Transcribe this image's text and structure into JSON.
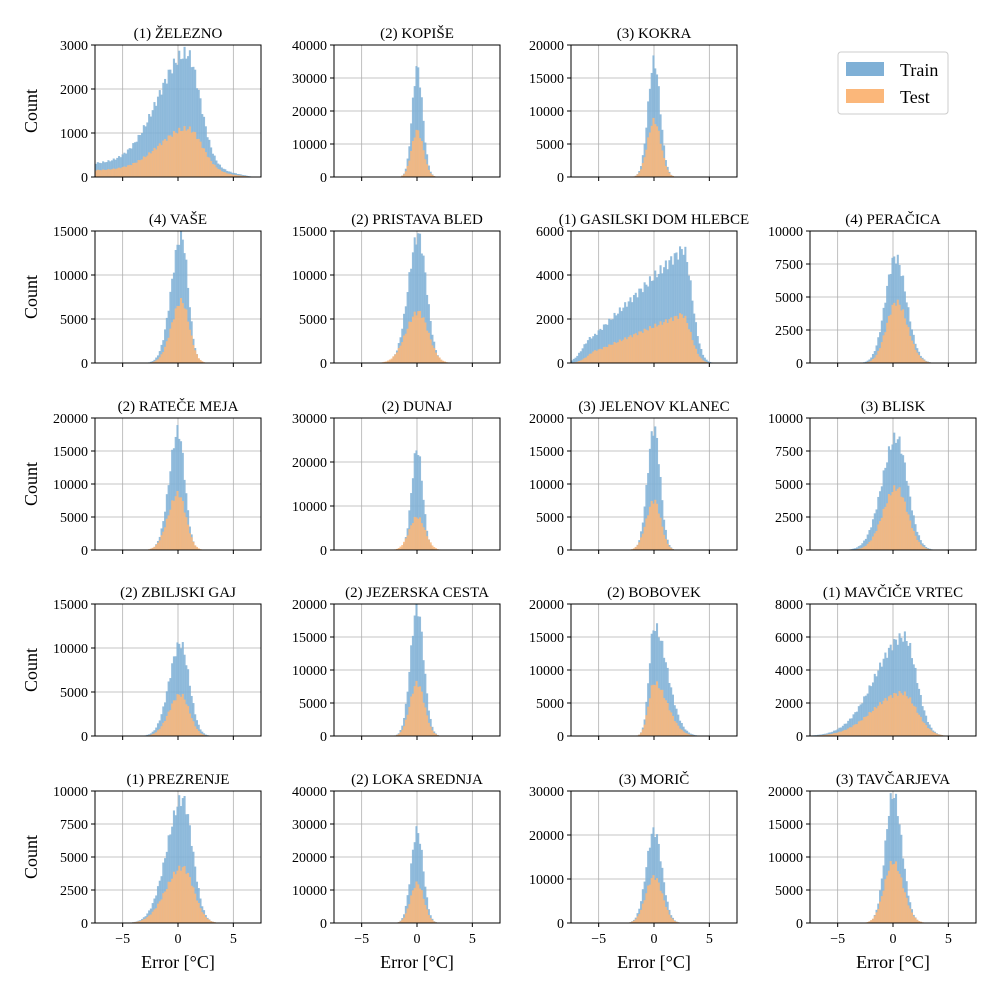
{
  "figure": {
    "ylabel": "Count",
    "xlabel": "Error [°C]",
    "legend": {
      "placement": "top-right",
      "items": [
        {
          "name": "Train",
          "color": "#7fb0d6"
        },
        {
          "name": "Test",
          "color": "#fbb77a"
        }
      ]
    }
  },
  "chart_data": [
    {
      "type": "bar",
      "title": "(1) ŽELEZNO",
      "ylim": [
        0,
        3000
      ],
      "yticks": [
        "0",
        "1000",
        "2000",
        "3000"
      ],
      "xlim": [
        -7.5,
        7.5
      ],
      "xticks": [
        "-5",
        "0",
        "5"
      ],
      "show_xticklabels": false,
      "show_ylabel": true,
      "show_xlabel": false,
      "series": [
        {
          "name": "Train",
          "shape": "skew_left",
          "mu": 0.8,
          "sl": 2.6,
          "sr": 1.2,
          "peak": 2500,
          "floor": 300
        },
        {
          "name": "Test",
          "shape": "skew_left",
          "mu": 0.9,
          "sl": 2.6,
          "sr": 1.3,
          "peak": 950,
          "floor": 150
        }
      ]
    },
    {
      "type": "bar",
      "title": "(2) KOPIŠE",
      "ylim": [
        0,
        40000
      ],
      "yticks": [
        "0",
        "10000",
        "20000",
        "30000",
        "40000"
      ],
      "xlim": [
        -7.5,
        7.5
      ],
      "xticks": [
        "-5",
        "0",
        "5"
      ],
      "show_xticklabels": false,
      "show_ylabel": false,
      "show_xlabel": false,
      "series": [
        {
          "name": "Train",
          "mu": 0.0,
          "sl": 0.45,
          "sr": 0.5,
          "peak": 33000
        },
        {
          "name": "Test",
          "mu": 0.0,
          "sl": 0.5,
          "sr": 0.55,
          "peak": 14000
        }
      ]
    },
    {
      "type": "bar",
      "title": "(3) KOKRA",
      "ylim": [
        0,
        20000
      ],
      "yticks": [
        "0",
        "5000",
        "10000",
        "15000",
        "20000"
      ],
      "xlim": [
        -7.5,
        7.5
      ],
      "xticks": [
        "-5",
        "0",
        "5"
      ],
      "show_xticklabels": false,
      "show_ylabel": false,
      "show_xlabel": false,
      "series": [
        {
          "name": "Train",
          "mu": 0.0,
          "sl": 0.55,
          "sr": 0.55,
          "peak": 17500
        },
        {
          "name": "Test",
          "mu": 0.0,
          "sl": 0.6,
          "sr": 0.6,
          "peak": 8500
        }
      ]
    },
    {
      "type": "bar",
      "title": "(4) VAŠE",
      "ylim": [
        0,
        15000
      ],
      "yticks": [
        "0",
        "5000",
        "10000",
        "15000"
      ],
      "xlim": [
        -7.5,
        7.5
      ],
      "xticks": [
        "-5",
        "0",
        "5"
      ],
      "show_xticklabels": false,
      "show_ylabel": true,
      "show_xlabel": false,
      "series": [
        {
          "name": "Train",
          "mu": 0.3,
          "sl": 0.9,
          "sr": 0.6,
          "peak": 14500
        },
        {
          "name": "Test",
          "mu": 0.3,
          "sl": 0.9,
          "sr": 0.7,
          "peak": 7000
        }
      ]
    },
    {
      "type": "bar",
      "title": "(2) PRISTAVA BLED",
      "ylim": [
        0,
        15000
      ],
      "yticks": [
        "0",
        "5000",
        "10000",
        "15000"
      ],
      "xlim": [
        -7.5,
        7.5
      ],
      "xticks": [
        "-5",
        "0",
        "5"
      ],
      "show_xticklabels": false,
      "show_ylabel": false,
      "show_xlabel": false,
      "series": [
        {
          "name": "Train",
          "mu": 0.1,
          "sl": 0.9,
          "sr": 0.75,
          "peak": 14500
        },
        {
          "name": "Test",
          "mu": 0.1,
          "sl": 1.1,
          "sr": 0.9,
          "peak": 5800
        }
      ]
    },
    {
      "type": "bar",
      "title": "(1) GASILSKI DOM HLEBCE",
      "ylim": [
        0,
        6000
      ],
      "yticks": [
        "0",
        "2000",
        "4000",
        "6000"
      ],
      "xlim": [
        -7.5,
        7.5
      ],
      "xticks": [
        "-5",
        "0",
        "5"
      ],
      "show_xticklabels": false,
      "show_ylabel": false,
      "show_xlabel": false,
      "series": [
        {
          "name": "Train",
          "shape": "ramp",
          "a": -5.5,
          "b": 2.6,
          "h0": 1200,
          "h1": 5200,
          "decay": 0.8
        },
        {
          "name": "Test",
          "shape": "ramp",
          "a": -5.0,
          "b": 2.5,
          "h0": 600,
          "h1": 2200,
          "decay": 0.8
        }
      ]
    },
    {
      "type": "bar",
      "title": "(4) PERAČICA",
      "ylim": [
        0,
        10000
      ],
      "yticks": [
        "0",
        "2500",
        "5000",
        "7500",
        "10000"
      ],
      "xlim": [
        -7.5,
        7.5
      ],
      "xticks": [
        "-5",
        "0",
        "5"
      ],
      "show_xticklabels": false,
      "show_ylabel": false,
      "show_xlabel": false,
      "series": [
        {
          "name": "Train",
          "mu": 0.2,
          "sl": 0.9,
          "sr": 1.0,
          "peak": 8000
        },
        {
          "name": "Test",
          "mu": 0.3,
          "sl": 0.9,
          "sr": 1.0,
          "peak": 4600
        }
      ]
    },
    {
      "type": "bar",
      "title": "(2) RATEČE MEJA",
      "ylim": [
        0,
        20000
      ],
      "yticks": [
        "0",
        "5000",
        "10000",
        "15000",
        "20000"
      ],
      "xlim": [
        -7.5,
        7.5
      ],
      "xticks": [
        "-5",
        "0",
        "5"
      ],
      "show_xticklabels": false,
      "show_ylabel": true,
      "show_xlabel": false,
      "series": [
        {
          "name": "Train",
          "mu": 0.0,
          "sl": 0.8,
          "sr": 0.6,
          "peak": 18000
        },
        {
          "name": "Test",
          "mu": 0.0,
          "sl": 0.9,
          "sr": 0.7,
          "peak": 8500
        }
      ]
    },
    {
      "type": "bar",
      "title": "(2) DUNAJ",
      "ylim": [
        0,
        30000
      ],
      "yticks": [
        "0",
        "10000",
        "20000",
        "30000"
      ],
      "xlim": [
        -7.5,
        7.5
      ],
      "xticks": [
        "-5",
        "0",
        "5"
      ],
      "show_xticklabels": false,
      "show_ylabel": false,
      "show_xlabel": false,
      "series": [
        {
          "name": "Train",
          "mu": 0.0,
          "sl": 0.5,
          "sr": 0.5,
          "peak": 23000
        },
        {
          "name": "Test",
          "mu": 0.0,
          "sl": 0.7,
          "sr": 0.7,
          "peak": 7500
        }
      ]
    },
    {
      "type": "bar",
      "title": "(3) JELENOV KLANEC",
      "ylim": [
        0,
        20000
      ],
      "yticks": [
        "0",
        "5000",
        "10000",
        "15000",
        "20000"
      ],
      "xlim": [
        -7.5,
        7.5
      ],
      "xticks": [
        "-5",
        "0",
        "5"
      ],
      "show_xticklabels": false,
      "show_ylabel": false,
      "show_xlabel": false,
      "series": [
        {
          "name": "Train",
          "mu": 0.0,
          "sl": 0.6,
          "sr": 0.55,
          "peak": 18500
        },
        {
          "name": "Test",
          "mu": 0.0,
          "sl": 0.7,
          "sr": 0.6,
          "peak": 7500
        }
      ]
    },
    {
      "type": "bar",
      "title": "(3) BLISK",
      "ylim": [
        0,
        10000
      ],
      "yticks": [
        "0",
        "2500",
        "5000",
        "7500",
        "10000"
      ],
      "xlim": [
        -7.5,
        7.5
      ],
      "xticks": [
        "-5",
        "0",
        "5"
      ],
      "show_xticklabels": false,
      "show_ylabel": false,
      "show_xlabel": false,
      "series": [
        {
          "name": "Train",
          "mu": 0.3,
          "sl": 1.3,
          "sr": 1.0,
          "peak": 8500
        },
        {
          "name": "Test",
          "mu": 0.3,
          "sl": 1.2,
          "sr": 1.0,
          "peak": 4700
        }
      ]
    },
    {
      "type": "bar",
      "title": "(2) ZBILJSKI GAJ",
      "ylim": [
        0,
        15000
      ],
      "yticks": [
        "0",
        "5000",
        "10000",
        "15000"
      ],
      "xlim": [
        -7.5,
        7.5
      ],
      "xticks": [
        "-5",
        "0",
        "5"
      ],
      "show_xticklabels": false,
      "show_ylabel": true,
      "show_xlabel": false,
      "series": [
        {
          "name": "Train",
          "mu": 0.2,
          "sl": 1.0,
          "sr": 0.8,
          "peak": 10500
        },
        {
          "name": "Test",
          "mu": 0.2,
          "sl": 1.0,
          "sr": 0.8,
          "peak": 4700
        }
      ]
    },
    {
      "type": "bar",
      "title": "(2) JEZERSKA CESTA",
      "ylim": [
        0,
        20000
      ],
      "yticks": [
        "0",
        "5000",
        "10000",
        "15000",
        "20000"
      ],
      "xlim": [
        -7.5,
        7.5
      ],
      "xticks": [
        "-5",
        "0",
        "5"
      ],
      "show_xticklabels": false,
      "show_ylabel": false,
      "show_xlabel": false,
      "series": [
        {
          "name": "Train",
          "mu": 0.0,
          "sl": 0.6,
          "sr": 0.6,
          "peak": 19500
        },
        {
          "name": "Test",
          "mu": 0.0,
          "sl": 0.65,
          "sr": 0.65,
          "peak": 8000
        }
      ]
    },
    {
      "type": "bar",
      "title": "(2) BOBOVEK",
      "ylim": [
        0,
        20000
      ],
      "yticks": [
        "0",
        "5000",
        "10000",
        "15000",
        "20000"
      ],
      "xlim": [
        -7.5,
        7.5
      ],
      "xticks": [
        "-5",
        "0",
        "5"
      ],
      "show_xticklabels": false,
      "show_ylabel": false,
      "show_xlabel": false,
      "series": [
        {
          "name": "Train",
          "mu": 0.0,
          "sl": 0.45,
          "sr": 1.2,
          "peak": 16500
        },
        {
          "name": "Test",
          "mu": 0.0,
          "sl": 0.5,
          "sr": 1.2,
          "peak": 8000
        }
      ]
    },
    {
      "type": "bar",
      "title": "(1) MAVČIČE VRTEC",
      "ylim": [
        0,
        8000
      ],
      "yticks": [
        "0",
        "2000",
        "4000",
        "6000",
        "8000"
      ],
      "xlim": [
        -7.5,
        7.5
      ],
      "xticks": [
        "-5",
        "0",
        "5"
      ],
      "show_xticklabels": false,
      "show_ylabel": false,
      "show_xlabel": false,
      "series": [
        {
          "name": "Train",
          "mu": 1.0,
          "sl": 2.6,
          "sr": 1.1,
          "peak": 6000
        },
        {
          "name": "Test",
          "mu": 0.8,
          "sl": 2.6,
          "sr": 1.3,
          "peak": 2600
        }
      ]
    },
    {
      "type": "bar",
      "title": "(1) PREZRENJE",
      "ylim": [
        0,
        10000
      ],
      "yticks": [
        "0",
        "2500",
        "5000",
        "7500",
        "10000"
      ],
      "xlim": [
        -7.5,
        7.5
      ],
      "xticks": [
        "-5",
        "0",
        "5"
      ],
      "show_xticklabels": true,
      "show_ylabel": true,
      "show_xlabel": true,
      "series": [
        {
          "name": "Train",
          "mu": 0.4,
          "sl": 1.4,
          "sr": 0.9,
          "peak": 9400
        },
        {
          "name": "Test",
          "mu": 0.4,
          "sl": 1.5,
          "sr": 1.0,
          "peak": 4200
        }
      ]
    },
    {
      "type": "bar",
      "title": "(2) LOKA SREDNJA",
      "ylim": [
        0,
        40000
      ],
      "yticks": [
        "0",
        "10000",
        "20000",
        "30000",
        "40000"
      ],
      "xlim": [
        -7.5,
        7.5
      ],
      "xticks": [
        "-5",
        "0",
        "5"
      ],
      "show_xticklabels": true,
      "show_ylabel": false,
      "show_xlabel": true,
      "series": [
        {
          "name": "Train",
          "mu": 0.0,
          "sl": 0.55,
          "sr": 0.55,
          "peak": 28000
        },
        {
          "name": "Test",
          "mu": 0.0,
          "sl": 0.6,
          "sr": 0.6,
          "peak": 12000
        }
      ]
    },
    {
      "type": "bar",
      "title": "(3) MORIČ",
      "ylim": [
        0,
        30000
      ],
      "yticks": [
        "0",
        "10000",
        "20000",
        "30000"
      ],
      "xlim": [
        -7.5,
        7.5
      ],
      "xticks": [
        "-5",
        "0",
        "5"
      ],
      "show_xticklabels": true,
      "show_ylabel": false,
      "show_xlabel": true,
      "series": [
        {
          "name": "Train",
          "mu": 0.0,
          "sl": 0.7,
          "sr": 0.7,
          "peak": 21000
        },
        {
          "name": "Test",
          "mu": 0.0,
          "sl": 0.75,
          "sr": 0.75,
          "peak": 10500
        }
      ]
    },
    {
      "type": "bar",
      "title": "(3) TAVČARJEVA",
      "ylim": [
        0,
        20000
      ],
      "yticks": [
        "0",
        "5000",
        "10000",
        "15000",
        "20000"
      ],
      "xlim": [
        -7.5,
        7.5
      ],
      "xticks": [
        "-5",
        "0",
        "5"
      ],
      "show_xticklabels": true,
      "show_ylabel": false,
      "show_xlabel": true,
      "series": [
        {
          "name": "Train",
          "mu": 0.0,
          "sl": 0.7,
          "sr": 0.8,
          "peak": 19500
        },
        {
          "name": "Test",
          "mu": 0.0,
          "sl": 0.8,
          "sr": 0.9,
          "peak": 9200
        }
      ]
    }
  ]
}
